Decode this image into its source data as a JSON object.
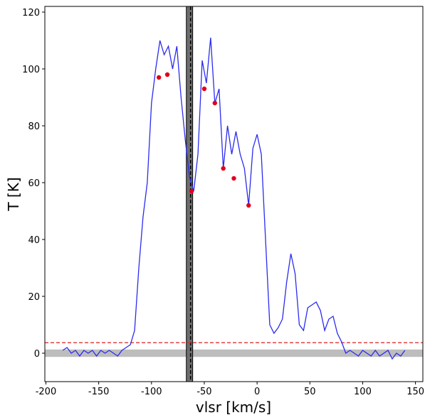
{
  "chart_data": {
    "type": "line",
    "xlabel": "vlsr [km/s]",
    "ylabel": "T [K]",
    "xlim": [
      -201,
      157
    ],
    "ylim": [
      -10,
      122
    ],
    "xticks": [
      -200,
      -150,
      -100,
      -50,
      0,
      50,
      100,
      150
    ],
    "yticks": [
      0,
      20,
      40,
      60,
      80,
      100,
      120
    ],
    "series": [
      {
        "color": "#2b2bf0",
        "x": [
          -184,
          -180,
          -176,
          -172,
          -168,
          -164,
          -160,
          -156,
          -152,
          -148,
          -144,
          -140,
          -136,
          -132,
          -128,
          -124,
          -120,
          -116,
          -112,
          -108,
          -104,
          -100,
          -96,
          -92,
          -88,
          -84,
          -80,
          -76,
          -72,
          -68,
          -64,
          -60,
          -56,
          -52,
          -48,
          -44,
          -40,
          -36,
          -32,
          -28,
          -24,
          -20,
          -16,
          -12,
          -8,
          -4,
          0,
          4,
          8,
          12,
          16,
          20,
          24,
          28,
          32,
          36,
          40,
          44,
          48,
          52,
          56,
          60,
          64,
          68,
          72,
          76,
          80,
          84,
          88,
          92,
          96,
          100,
          104,
          108,
          112,
          116,
          120,
          124,
          128,
          132,
          136,
          140
        ],
        "values": [
          1,
          2,
          0,
          1,
          -1,
          1,
          0,
          1,
          -1,
          1,
          0,
          1,
          0,
          -1,
          1,
          2,
          3,
          8,
          30,
          48,
          60,
          88,
          100,
          110,
          105,
          108,
          100,
          108,
          90,
          75,
          62,
          57,
          70,
          103,
          95,
          111,
          88,
          93,
          65,
          80,
          70,
          78,
          70,
          65,
          52,
          72,
          77,
          70,
          40,
          10,
          7,
          9,
          12,
          25,
          35,
          28,
          10,
          8,
          16,
          17,
          18,
          15,
          8,
          12,
          13,
          7,
          4,
          0,
          1,
          0,
          -1,
          1,
          0,
          -1,
          1,
          -1,
          0,
          1,
          -2,
          0,
          -1,
          1
        ]
      }
    ],
    "points": {
      "color": "#e0001b",
      "x": [
        -93,
        -85,
        -62,
        -50,
        -40,
        -32,
        -22,
        -8
      ],
      "values": [
        97,
        98,
        57,
        93,
        88,
        65,
        61.5,
        52
      ]
    },
    "hline": {
      "value": 3.7,
      "color": "#e03030"
    },
    "hband": {
      "range": [
        -1.3,
        1.3
      ],
      "color": "#bdbdbd"
    },
    "vband": {
      "range": [
        -67,
        -61
      ],
      "color": "#6e6e6e"
    },
    "vline": {
      "value": -63,
      "color": "#000000"
    }
  }
}
